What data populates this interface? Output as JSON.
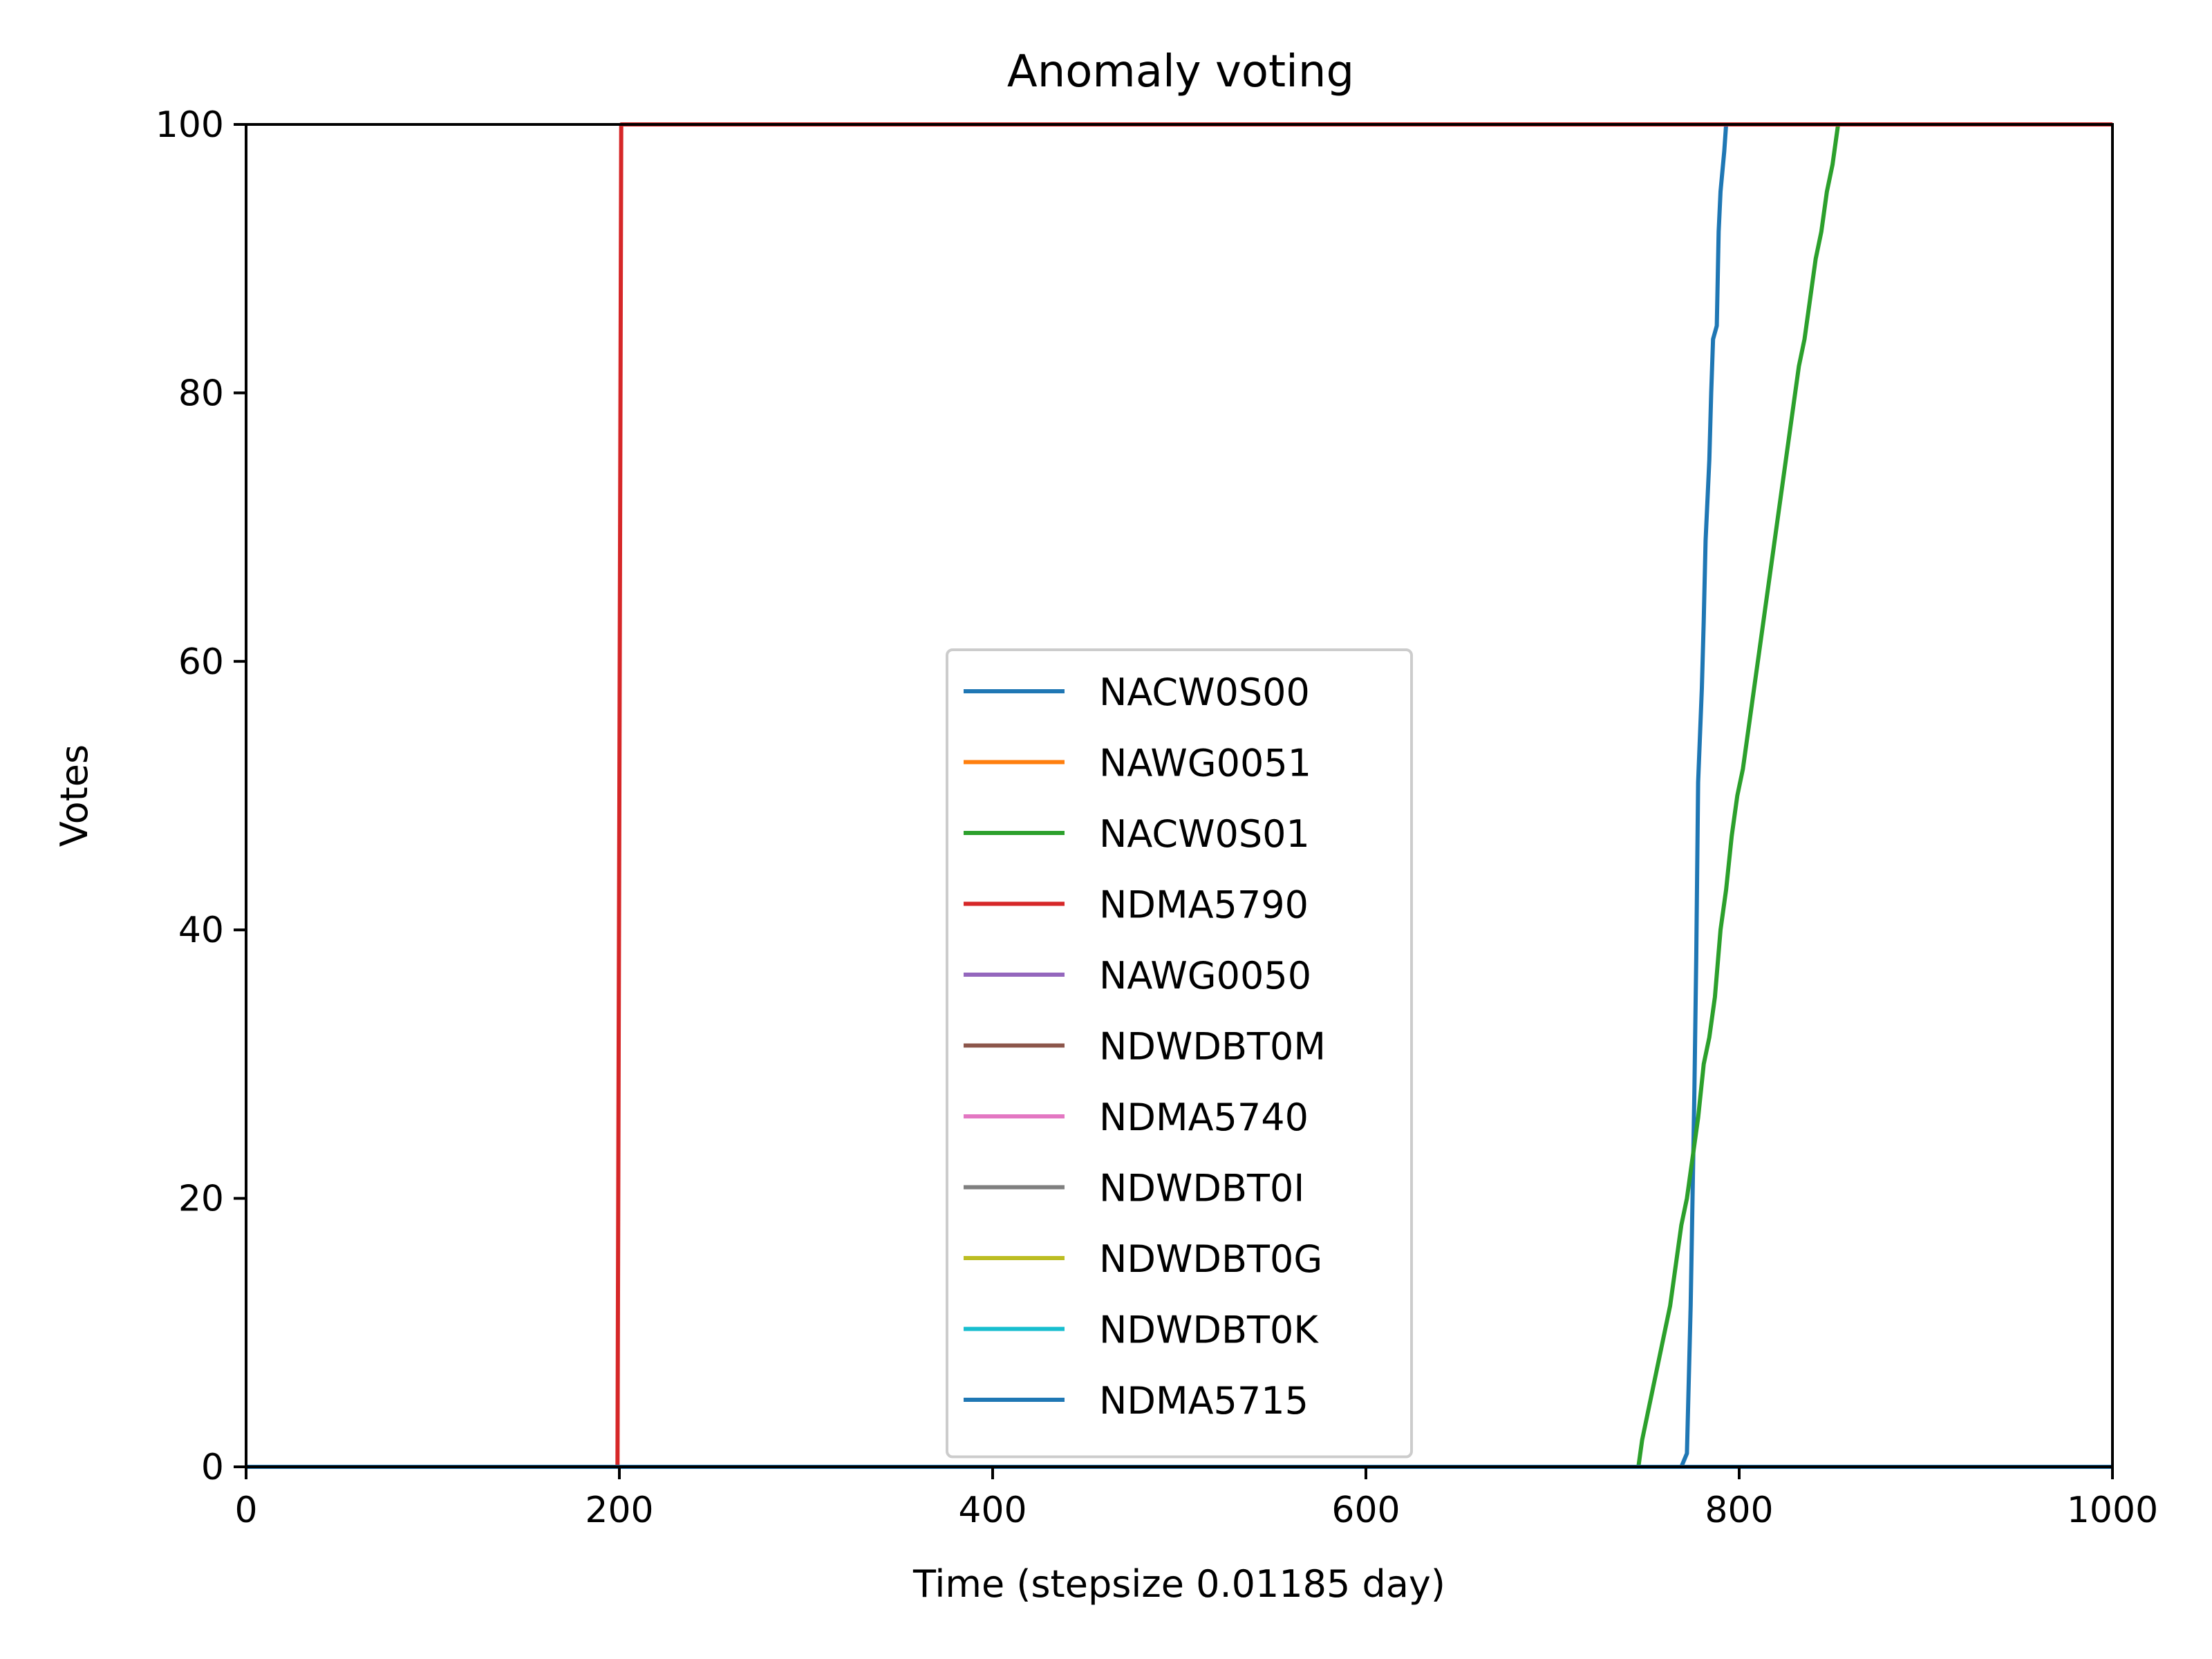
{
  "chart_data": {
    "type": "line",
    "title": "Anomaly voting",
    "xlabel": "Time (stepsize 0.01185 day)",
    "ylabel": "Votes",
    "xlim": [
      0,
      1000
    ],
    "ylim": [
      0,
      100
    ],
    "xticks": [
      0,
      200,
      400,
      600,
      800,
      1000
    ],
    "yticks": [
      0,
      20,
      40,
      60,
      80,
      100
    ],
    "grid": false,
    "legend_position": "lower-center",
    "series": [
      {
        "name": "NACW0S00",
        "color": "#1f77b4",
        "x": [
          0,
          769,
          772,
          774,
          776,
          777,
          778,
          780,
          781,
          782,
          784,
          785,
          786,
          788,
          789,
          790,
          792,
          793,
          795,
          1000
        ],
        "y": [
          0,
          0,
          1,
          12,
          28,
          38,
          51,
          58,
          63,
          69,
          75,
          80,
          84,
          85,
          92,
          95,
          98,
          100,
          100,
          100
        ]
      },
      {
        "name": "NAWG0051",
        "color": "#ff7f0e",
        "x": [
          0,
          1000
        ],
        "y": [
          0,
          0
        ]
      },
      {
        "name": "NACW0S01",
        "color": "#2ca02c",
        "x": [
          0,
          746,
          748,
          751,
          754,
          757,
          760,
          763,
          766,
          769,
          772,
          775,
          778,
          781,
          784,
          787,
          790,
          793,
          796,
          799,
          802,
          805,
          808,
          811,
          814,
          817,
          820,
          823,
          826,
          829,
          832,
          835,
          838,
          841,
          844,
          847,
          850,
          853,
          1000
        ],
        "y": [
          0,
          0,
          2,
          4,
          6,
          8,
          10,
          12,
          15,
          18,
          20,
          23,
          26,
          30,
          32,
          35,
          40,
          43,
          47,
          50,
          52,
          55,
          58,
          61,
          64,
          67,
          70,
          73,
          76,
          79,
          82,
          84,
          87,
          90,
          92,
          95,
          97,
          100,
          100
        ]
      },
      {
        "name": "NDMA5790",
        "color": "#d62728",
        "x": [
          0,
          199,
          200,
          201,
          1000
        ],
        "y": [
          0,
          0,
          50,
          100,
          100
        ]
      },
      {
        "name": "NAWG0050",
        "color": "#9467bd",
        "x": [
          0,
          1000
        ],
        "y": [
          0,
          0
        ]
      },
      {
        "name": "NDWDBT0M",
        "color": "#8c564b",
        "x": [
          0,
          1000
        ],
        "y": [
          0,
          0
        ]
      },
      {
        "name": "NDMA5740",
        "color": "#e377c2",
        "x": [
          0,
          1000
        ],
        "y": [
          0,
          0
        ]
      },
      {
        "name": "NDWDBT0I",
        "color": "#7f7f7f",
        "x": [
          0,
          1000
        ],
        "y": [
          0,
          0
        ]
      },
      {
        "name": "NDWDBT0G",
        "color": "#bcbd22",
        "x": [
          0,
          1000
        ],
        "y": [
          0,
          0
        ]
      },
      {
        "name": "NDWDBT0K",
        "color": "#17becf",
        "x": [
          0,
          1000
        ],
        "y": [
          0,
          0
        ]
      },
      {
        "name": "NDMA5715",
        "color": "#1f77b4",
        "x": [
          0,
          1000
        ],
        "y": [
          0,
          0
        ]
      }
    ]
  }
}
